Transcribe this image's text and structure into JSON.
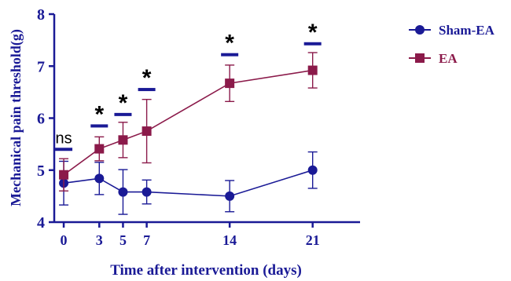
{
  "chart_data": {
    "type": "line",
    "xlabel": "Time after intervention (days)",
    "ylabel": "Mechanical pain threshold(g)",
    "x": [
      0,
      3,
      5,
      7,
      14,
      21
    ],
    "x_ticks": [
      "0",
      "3",
      "5",
      "7",
      "14",
      "21"
    ],
    "y_ticks": [
      "4",
      "5",
      "6",
      "7",
      "8"
    ],
    "xlim": [
      -0.8,
      25
    ],
    "ylim": [
      4,
      8
    ],
    "grid": false,
    "legend_position": "top-right",
    "series": [
      {
        "name": "Sham-EA",
        "marker": "circle",
        "color": "#1a1a96",
        "values": [
          4.75,
          4.84,
          4.58,
          4.58,
          4.5,
          5.0
        ],
        "error": [
          0.42,
          0.31,
          0.43,
          0.23,
          0.3,
          0.35
        ]
      },
      {
        "name": "EA",
        "marker": "square",
        "color": "#8b1a4a",
        "values": [
          4.91,
          5.41,
          5.58,
          5.75,
          6.67,
          6.92
        ],
        "error": [
          0.31,
          0.23,
          0.34,
          0.61,
          0.35,
          0.34
        ]
      }
    ],
    "annotations": [
      {
        "x": 0,
        "text": "ns",
        "y": 5.4
      },
      {
        "x": 3,
        "text": "*",
        "y": 5.85
      },
      {
        "x": 5,
        "text": "*",
        "y": 6.07
      },
      {
        "x": 7,
        "text": "*",
        "y": 6.55
      },
      {
        "x": 14,
        "text": "*",
        "y": 7.22
      },
      {
        "x": 21,
        "text": "*",
        "y": 7.43
      }
    ]
  }
}
